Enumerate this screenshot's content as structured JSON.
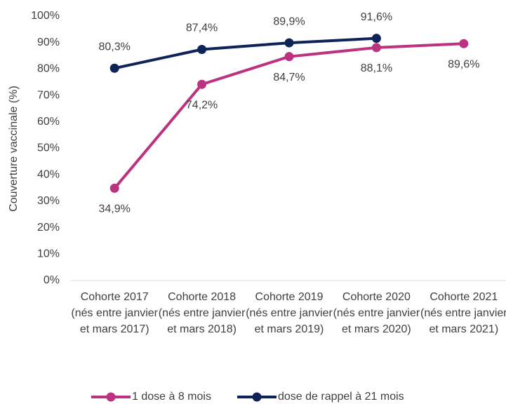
{
  "chart_data": {
    "type": "line",
    "y_label": "Couverture vaccinale (%)",
    "categories": [
      "Cohorte 2017 (nés entre janvier et mars 2017)",
      "Cohorte 2018 (nés entre janvier et mars 2018)",
      "Cohorte 2019 (nés entre janvier et mars 2019)",
      "Cohorte 2020 (nés entre janvier et mars 2020)",
      "Cohorte 2021 (nés entre janvier et mars 2021)"
    ],
    "series": [
      {
        "name": "1 dose à 8 mois",
        "color": "#bb3380",
        "values": [
          34.9,
          74.2,
          84.7,
          88.1,
          89.6
        ],
        "value_labels": [
          "34,9%",
          "74,2%",
          "84,7%",
          "88,1%",
          "89,6%"
        ]
      },
      {
        "name": "dose de rappel à 21 mois",
        "color": "#0e2357",
        "values": [
          80.3,
          87.4,
          89.9,
          91.6,
          null
        ],
        "value_labels": [
          "80,3%",
          "87,4%",
          "89,9%",
          "91,6%",
          null
        ]
      }
    ],
    "ylim": [
      0,
      100
    ],
    "yticks": [
      {
        "value": 0,
        "label": "0%"
      },
      {
        "value": 10,
        "label": "10%"
      },
      {
        "value": 20,
        "label": "20%"
      },
      {
        "value": 30,
        "label": "30%"
      },
      {
        "value": 40,
        "label": "40%"
      },
      {
        "value": 50,
        "label": "50%"
      },
      {
        "value": 60,
        "label": "60%"
      },
      {
        "value": 70,
        "label": "70%"
      },
      {
        "value": 80,
        "label": "80%"
      },
      {
        "value": 90,
        "label": "90%"
      },
      {
        "value": 100,
        "label": "100%"
      }
    ],
    "grid": false
  }
}
